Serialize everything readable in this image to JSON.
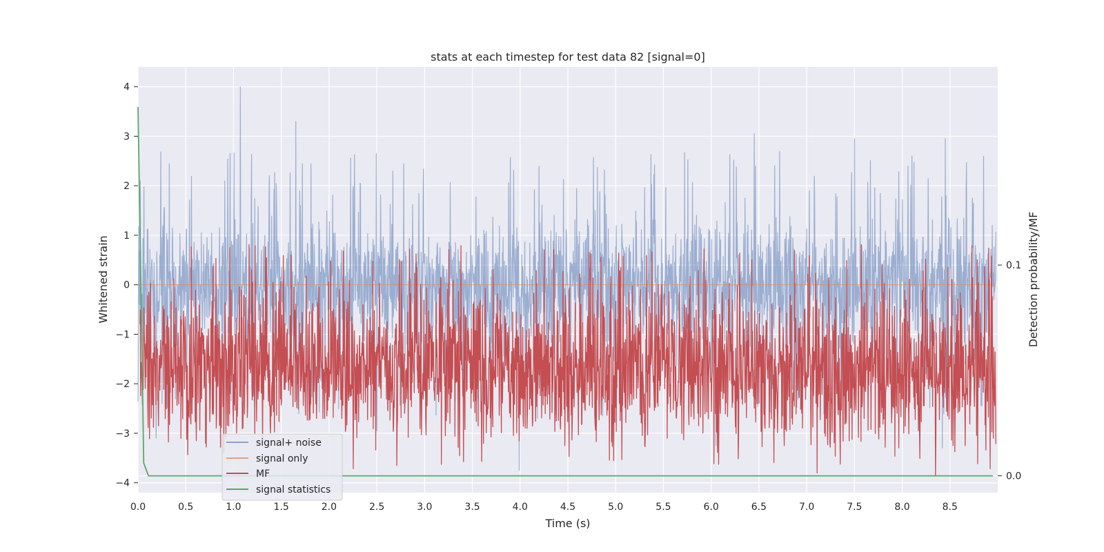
{
  "chart_data": {
    "type": "line",
    "title": "stats at each timestep for test data 82 [signal=0]",
    "xlabel": "Time (s)",
    "ylabel": "Whitened strain",
    "ylabel_right": "Detection probability/MF",
    "xlim": [
      0.0,
      9.0
    ],
    "ylim": [
      -4.2,
      4.4
    ],
    "ylim_right": [
      -0.008,
      0.194
    ],
    "x_ticks": [
      "0.0",
      "0.5",
      "1.0",
      "1.5",
      "2.0",
      "2.5",
      "3.0",
      "3.5",
      "4.0",
      "4.5",
      "5.0",
      "5.5",
      "6.0",
      "6.5",
      "7.0",
      "7.5",
      "8.0",
      "8.5"
    ],
    "y_ticks": [
      "−4",
      "−3",
      "−2",
      "−1",
      "0",
      "1",
      "2",
      "3",
      "4"
    ],
    "y_ticks_right": [
      "0.0",
      "0.1"
    ],
    "grid": true,
    "legend_position": "lower-left",
    "series": [
      {
        "name": "signal+ noise",
        "color": "#4c72b0",
        "style": "noisy-band",
        "axis": "left",
        "typical_range": [
          -1.6,
          1.6
        ],
        "peaks": [
          {
            "x": 1.07,
            "y": 4.0
          },
          {
            "x": 1.65,
            "y": 3.3
          },
          {
            "x": 6.45,
            "y": 3.05
          },
          {
            "x": 8.45,
            "y": 2.95
          },
          {
            "x": 7.5,
            "y": 2.95
          },
          {
            "x": 3.99,
            "y": -3.75
          },
          {
            "x": 8.42,
            "y": -3.3
          },
          {
            "x": 6.05,
            "y": -3.25
          },
          {
            "x": 0.19,
            "y": -3.1
          },
          {
            "x": 2.5,
            "y": -2.95
          }
        ]
      },
      {
        "name": "signal only",
        "color": "#dd8452",
        "style": "flat",
        "axis": "left",
        "value": 0.0
      },
      {
        "name": "MF",
        "color": "#c44e52",
        "style": "noisy-band",
        "axis": "right",
        "typical_range": [
          0.0,
          0.1
        ],
        "peak": 0.11
      },
      {
        "name": "signal statistics",
        "color": "#55a868",
        "style": "line",
        "axis": "right",
        "x": [
          0.0,
          0.06,
          0.11,
          8.95
        ],
        "y": [
          0.175,
          0.006,
          0.0,
          0.0
        ]
      }
    ]
  }
}
